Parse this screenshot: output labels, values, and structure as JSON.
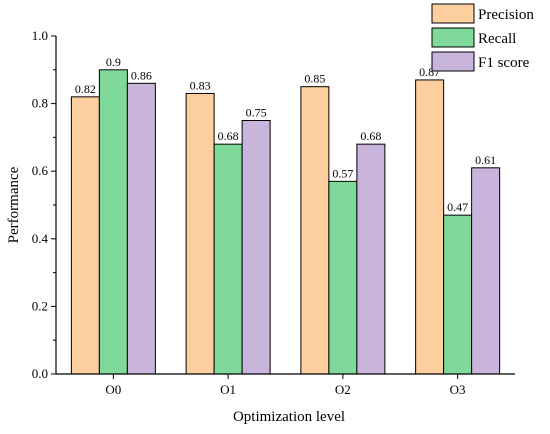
{
  "chart_data": {
    "type": "bar",
    "xlabel": "Optimization level",
    "ylabel": "Performance",
    "ylim": [
      0,
      1.0
    ],
    "yticks": [
      0.0,
      0.2,
      0.4,
      0.6,
      0.8,
      1.0
    ],
    "ytick_labels": [
      "0.0",
      "0.2",
      "0.4",
      "0.6",
      "0.8",
      "1.0"
    ],
    "categories": [
      "O0",
      "O1",
      "O2",
      "O3"
    ],
    "series": [
      {
        "name": "Precision",
        "values": [
          0.82,
          0.83,
          0.85,
          0.87
        ],
        "labels": [
          "0.82",
          "0.83",
          "0.85",
          "0.87"
        ],
        "color": "#FDCF9E"
      },
      {
        "name": "Recall",
        "values": [
          0.9,
          0.68,
          0.57,
          0.47
        ],
        "labels": [
          "0.9",
          "0.68",
          "0.57",
          "0.47"
        ],
        "color": "#7FD99A"
      },
      {
        "name": "F1 score",
        "values": [
          0.86,
          0.75,
          0.68,
          0.61
        ],
        "labels": [
          "0.86",
          "0.75",
          "0.68",
          "0.61"
        ],
        "color": "#C9B4DC"
      }
    ],
    "legend_position": "top-right",
    "grid": false
  }
}
